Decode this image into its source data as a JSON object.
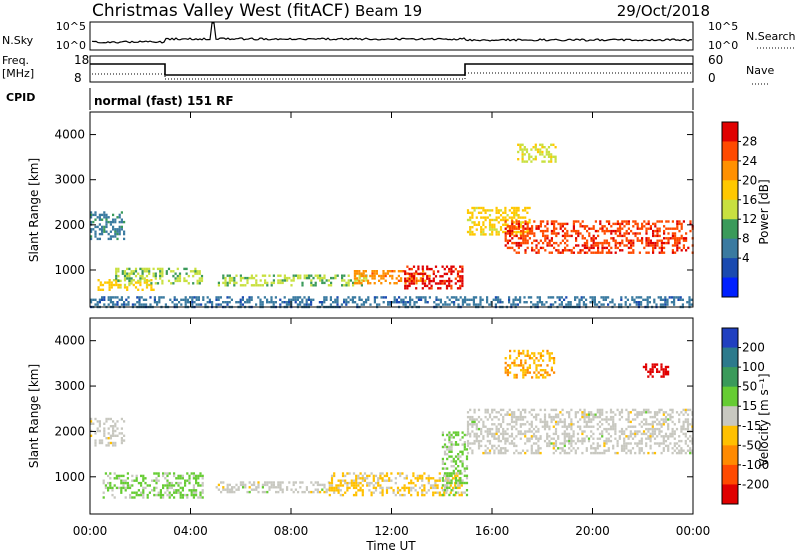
{
  "header": {
    "station": "Christmas Valley West (fitACF)",
    "beam": "Beam 19",
    "date": "29/Oct/2018"
  },
  "top_panel": {
    "left_label": "N.Sky",
    "right_label": "N.Search",
    "left_ticks": [
      "10^5",
      "10^0"
    ],
    "right_ticks": [
      "10^5",
      "10^0"
    ]
  },
  "freq_panel": {
    "left_label_1": "Freq.",
    "left_label_2": "[MHz]",
    "left_ticks": [
      "18",
      "8"
    ],
    "right_label": "Nave",
    "right_ticks": [
      "60",
      "0"
    ]
  },
  "cpid_panel": {
    "label": "CPID",
    "text": "normal (fast) 151 RF"
  },
  "time_axis": {
    "ticks": [
      "00:00",
      "04:00",
      "08:00",
      "12:00",
      "16:00",
      "20:00",
      "00:00"
    ],
    "label": "Time UT"
  },
  "power_colorbar": {
    "label": "Power [dB]",
    "ticks": [
      "28",
      "24",
      "20",
      "16",
      "12",
      "8",
      "4"
    ],
    "colors": [
      "#e00000",
      "#ff4a00",
      "#ff9000",
      "#ffc800",
      "#c8e040",
      "#3a9a5a",
      "#3a7aa0",
      "#1a4ab0",
      "#0020ff"
    ]
  },
  "velocity_colorbar": {
    "label": "Velocity [m s⁻¹]",
    "ticks": [
      "200",
      "100",
      "50",
      "15",
      "-15",
      "-50",
      "-100",
      "-200"
    ],
    "colors": [
      "#2040c0",
      "#2c7a8c",
      "#3a9a5a",
      "#66cc33",
      "#c8c8c0",
      "#ffc000",
      "#ff8a00",
      "#ff4a00",
      "#e00000"
    ]
  },
  "chart_data": {
    "type": "heatmap",
    "panels": [
      {
        "name": "Power",
        "ylabel": "Slant Range [km]",
        "yticks": [
          1000,
          2000,
          3000,
          4000
        ],
        "ylim": [
          180,
          4500
        ],
        "xlim_hours": [
          0,
          24
        ],
        "clim": [
          0,
          30
        ],
        "regions": [
          {
            "t0": 0.0,
            "t1": 1.4,
            "r0": 1700,
            "r1": 2300,
            "value": 9
          },
          {
            "t0": 0.3,
            "t1": 2.5,
            "r0": 550,
            "r1": 800,
            "value": 18
          },
          {
            "t0": 1.0,
            "t1": 4.5,
            "r0": 700,
            "r1": 1050,
            "value": 14
          },
          {
            "t0": 5.0,
            "t1": 11.0,
            "r0": 650,
            "r1": 900,
            "value": 14
          },
          {
            "t0": 10.5,
            "t1": 13.5,
            "r0": 700,
            "r1": 1000,
            "value": 22
          },
          {
            "t0": 12.5,
            "t1": 14.8,
            "r0": 600,
            "r1": 1100,
            "value": 28
          },
          {
            "t0": 15.0,
            "t1": 17.5,
            "r0": 1800,
            "r1": 2400,
            "value": 18
          },
          {
            "t0": 16.5,
            "t1": 24.0,
            "r0": 1400,
            "r1": 2100,
            "value": 26
          },
          {
            "t0": 17.0,
            "t1": 18.5,
            "r0": 3400,
            "r1": 3800,
            "value": 16
          },
          {
            "t0": 0.0,
            "t1": 24.0,
            "r0": 180,
            "r1": 420,
            "value": 8
          }
        ]
      },
      {
        "name": "Velocity",
        "ylabel": "Slant Range [km]",
        "yticks": [
          1000,
          2000,
          3000,
          4000
        ],
        "ylim": [
          180,
          4500
        ],
        "xlim_hours": [
          0,
          24
        ],
        "clim": [
          -200,
          200
        ],
        "regions": [
          {
            "t0": 0.0,
            "t1": 1.4,
            "r0": 1700,
            "r1": 2300,
            "value": 0
          },
          {
            "t0": 0.5,
            "t1": 4.5,
            "r0": 550,
            "r1": 1100,
            "value": 30
          },
          {
            "t0": 5.0,
            "t1": 9.5,
            "r0": 650,
            "r1": 900,
            "value": 0
          },
          {
            "t0": 9.5,
            "t1": 14.8,
            "r0": 600,
            "r1": 1100,
            "value": -30
          },
          {
            "t0": 14.0,
            "t1": 15.0,
            "r0": 600,
            "r1": 2000,
            "value": 30
          },
          {
            "t0": 15.0,
            "t1": 24.0,
            "r0": 1500,
            "r1": 2500,
            "value": 0
          },
          {
            "t0": 16.5,
            "t1": 18.5,
            "r0": 3200,
            "r1": 3800,
            "value": -60
          },
          {
            "t0": 22.0,
            "t1": 23.0,
            "r0": 3200,
            "r1": 3500,
            "value": -200
          }
        ]
      }
    ]
  }
}
